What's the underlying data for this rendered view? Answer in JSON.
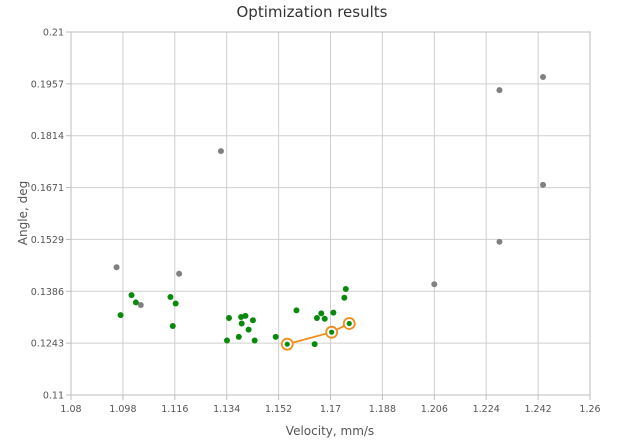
{
  "chart_data": {
    "type": "scatter",
    "title": "Optimization results",
    "xlabel": "Velocity, mm/s",
    "ylabel": "Angle, deg",
    "xlim": [
      1.08,
      1.26
    ],
    "ylim": [
      0.11,
      0.21
    ],
    "x_ticks": [
      "1.08",
      "1.098",
      "1.116",
      "1.134",
      "1.152",
      "1.17",
      "1.188",
      "1.206",
      "1.224",
      "1.242",
      "1.26"
    ],
    "y_ticks": [
      "0.11",
      "0.1243",
      "0.1386",
      "0.1529",
      "0.1671",
      "0.1814",
      "0.1957",
      "0.21"
    ],
    "grid": true,
    "colors": {
      "gray": "#808080",
      "green": "#0a8a0a",
      "orange": "#f28c1c"
    },
    "series": [
      {
        "color": "gray",
        "points": [
          [
            1.0958,
            0.1452
          ],
          [
            1.1042,
            0.1348
          ],
          [
            1.1175,
            0.1434
          ],
          [
            1.132,
            0.1772
          ],
          [
            1.206,
            0.1405
          ],
          [
            1.2286,
            0.1522
          ],
          [
            1.2286,
            0.194
          ],
          [
            1.2437,
            0.1976
          ],
          [
            1.2437,
            0.1679
          ]
        ]
      },
      {
        "color": "green",
        "points": [
          [
            1.0972,
            0.132
          ],
          [
            1.101,
            0.1375
          ],
          [
            1.1025,
            0.1355
          ],
          [
            1.1145,
            0.137
          ],
          [
            1.1153,
            0.129
          ],
          [
            1.1163,
            0.1352
          ],
          [
            1.1341,
            0.125
          ],
          [
            1.1348,
            0.1312
          ],
          [
            1.1382,
            0.126
          ],
          [
            1.139,
            0.1315
          ],
          [
            1.1392,
            0.1297
          ],
          [
            1.1405,
            0.1318
          ],
          [
            1.1416,
            0.128
          ],
          [
            1.1431,
            0.1306
          ],
          [
            1.1437,
            0.125
          ],
          [
            1.151,
            0.126
          ],
          [
            1.1582,
            0.1333
          ],
          [
            1.1645,
            0.124
          ],
          [
            1.1653,
            0.1312
          ],
          [
            1.1668,
            0.1325
          ],
          [
            1.168,
            0.131
          ],
          [
            1.171,
            0.1327
          ],
          [
            1.1748,
            0.1368
          ],
          [
            1.1753,
            0.1392
          ]
        ]
      },
      {
        "color": "orange",
        "connected": true,
        "points": [
          [
            1.155,
            0.124
          ],
          [
            1.1704,
            0.1273
          ],
          [
            1.1765,
            0.1297
          ]
        ]
      }
    ]
  }
}
